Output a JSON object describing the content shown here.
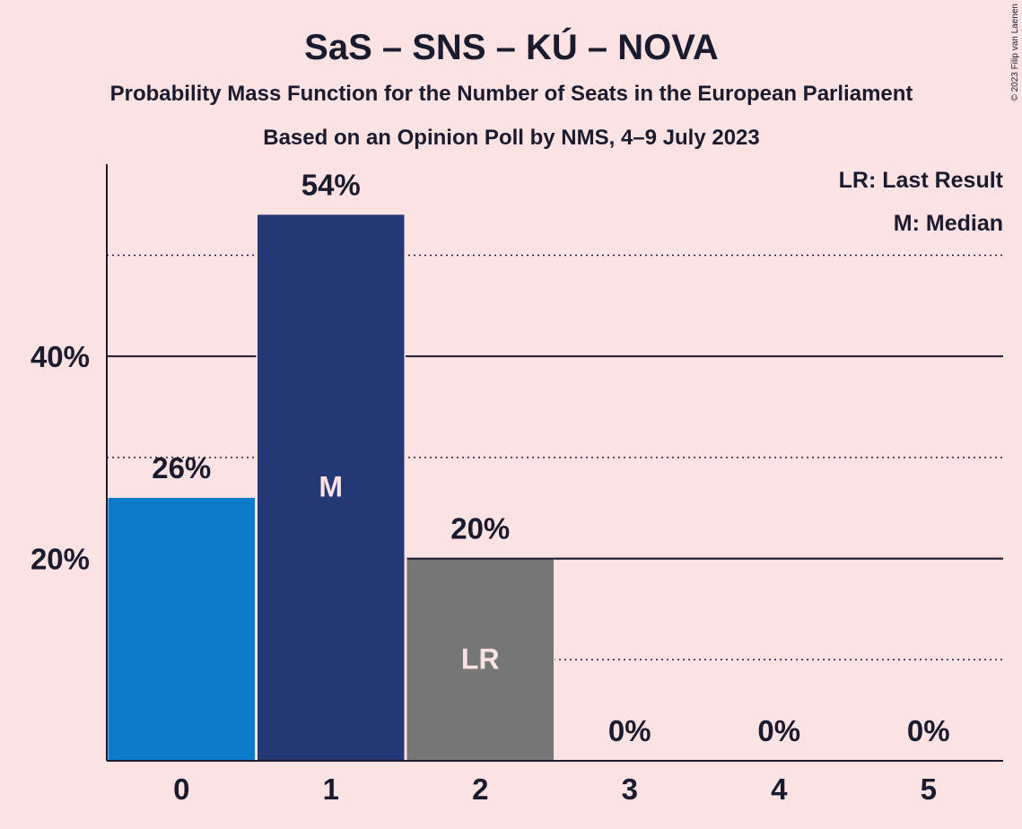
{
  "chart_data": {
    "type": "bar",
    "title": "SaS – SNS – KÚ – NOVA",
    "subtitle": "Probability Mass Function for the Number of Seats in the European Parliament",
    "subtitle2": "Based on an Opinion Poll by NMS, 4–9 July 2023",
    "copyright": "© 2023 Filip van Laenen",
    "legend": [
      "LR: Last Result",
      "M: Median"
    ],
    "legend_position": "top-right",
    "categories": [
      "0",
      "1",
      "2",
      "3",
      "4",
      "5"
    ],
    "values": [
      26,
      54,
      20,
      0,
      0,
      0
    ],
    "data_labels": [
      "26%",
      "54%",
      "20%",
      "0%",
      "0%",
      "0%"
    ],
    "bar_markers": [
      "",
      "M",
      "LR",
      "",
      "",
      ""
    ],
    "bar_colors": [
      "#0b7bc9",
      "#243875",
      "#767676",
      "#0b7bc9",
      "#0b7bc9",
      "#0b7bc9"
    ],
    "ylim": [
      0,
      59
    ],
    "yticks": [
      {
        "value": 20,
        "label": "20%"
      },
      {
        "value": 40,
        "label": "40%"
      }
    ],
    "solid_gridlines": [
      20,
      40
    ],
    "dotted_gridlines": [
      10,
      30,
      50
    ],
    "last_result_line": 20,
    "grid": true,
    "xlabel": "",
    "ylabel": ""
  }
}
